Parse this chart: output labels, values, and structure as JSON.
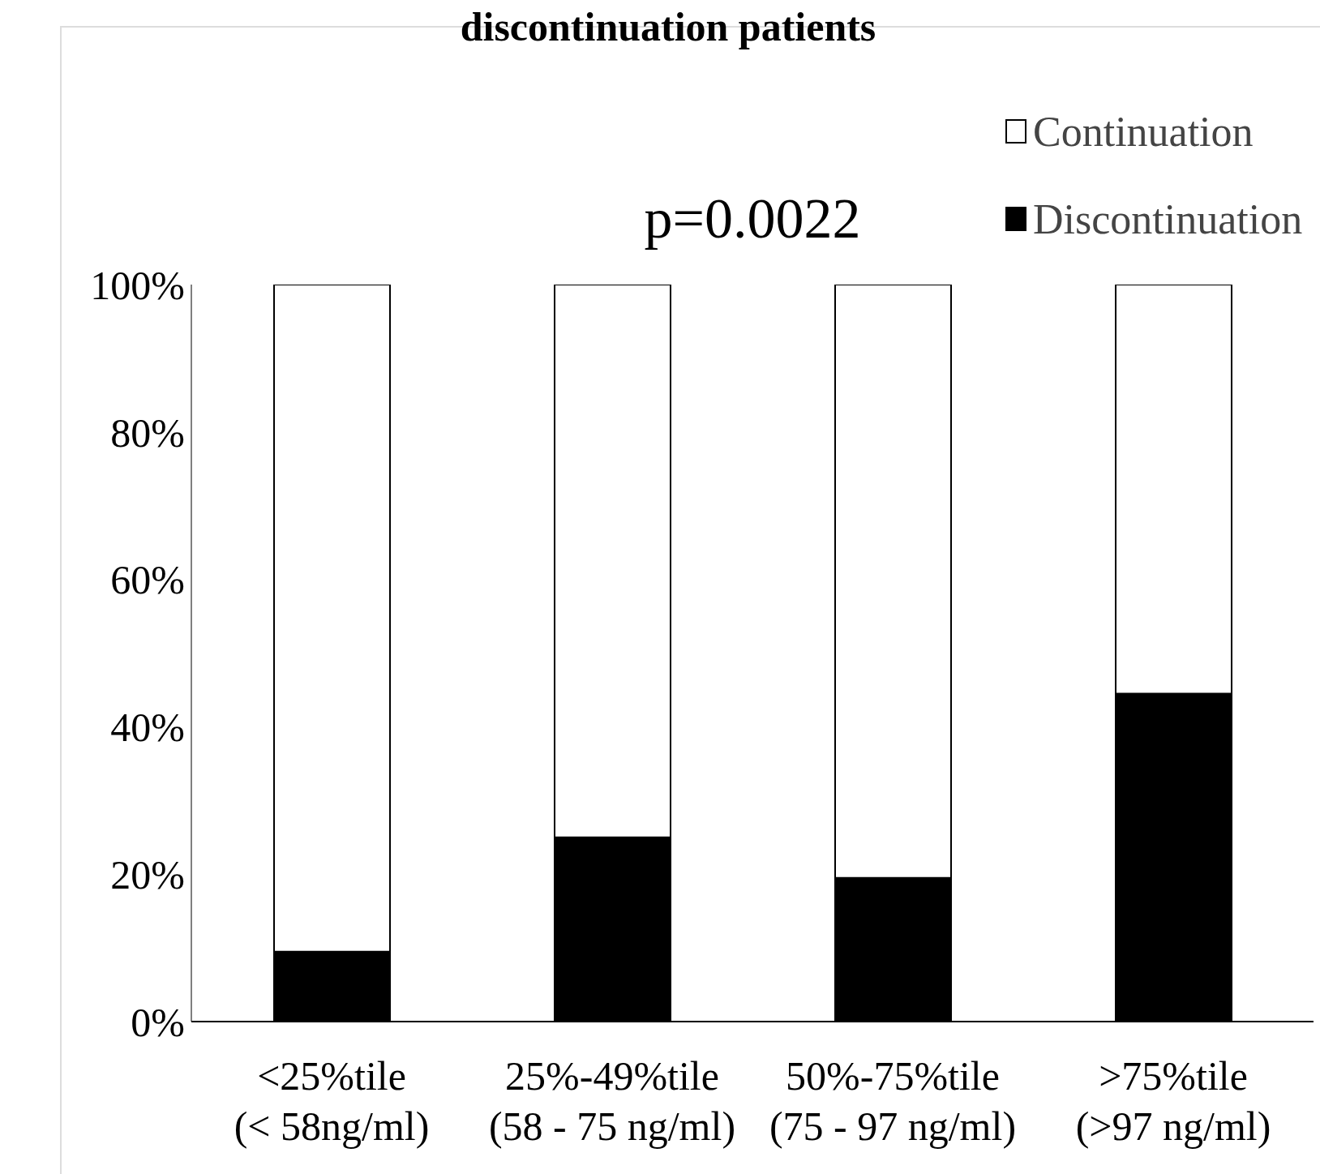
{
  "chart_data": {
    "type": "bar",
    "title": "discontinuation patients",
    "annotations": [
      "p=0.0022"
    ],
    "categories": [
      "<25%tile\n(< 58ng/ml)",
      "25%-49%tile\n(58 - 75 ng/ml)",
      "50%-75%tile\n(75 - 97 ng/ml)",
      ">75%tile\n(>97 ng/ml)"
    ],
    "stacked": true,
    "series": [
      {
        "name": "Discontinuation",
        "color": "#000000",
        "values": [
          9.5,
          25,
          19.5,
          44.5
        ]
      },
      {
        "name": "Continuation",
        "color": "#ffffff",
        "values": [
          90.5,
          75,
          80.5,
          55.5
        ]
      }
    ],
    "ylim": [
      0,
      100
    ],
    "yticks": [
      {
        "value": 0,
        "label": "0%"
      },
      {
        "value": 20,
        "label": "20%"
      },
      {
        "value": 40,
        "label": "40%"
      },
      {
        "value": 60,
        "label": "60%"
      },
      {
        "value": 80,
        "label": "80%"
      },
      {
        "value": 100,
        "label": "100%"
      }
    ],
    "grid": false,
    "legend": "top right"
  }
}
